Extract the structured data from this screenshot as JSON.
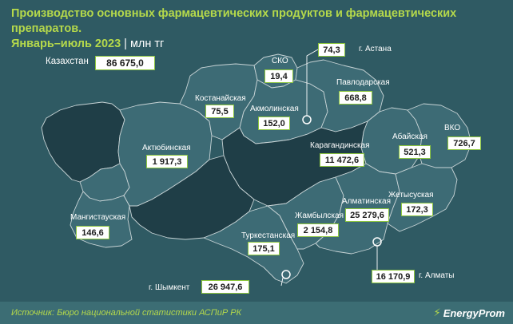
{
  "header": {
    "title_line1": "Производство основных фармацевтических продуктов и фармацевтических препаратов.",
    "title_line2": "Январь–июль 2023",
    "unit": "млн тг"
  },
  "total": {
    "label": "Казахстан",
    "value": "86 675,0"
  },
  "regions": {
    "sko": {
      "label": "СКО",
      "value": "19,4"
    },
    "astana": {
      "label": "г. Астана",
      "value": "74,3"
    },
    "pavlodar": {
      "label": "Павлодарская",
      "value": "668,8"
    },
    "kostanay": {
      "label": "Костанайская",
      "value": "75,5"
    },
    "akmola": {
      "label": "Акмолинская",
      "value": "152,0"
    },
    "aktobe": {
      "label": "Актюбинская",
      "value": "1 917,3"
    },
    "karaganda": {
      "label": "Карагандинская",
      "value": "11 472,6"
    },
    "abay": {
      "label": "Абайская",
      "value": "521,3"
    },
    "vko": {
      "label": "ВКО",
      "value": "726,7"
    },
    "almaty_reg": {
      "label": "Алматинская",
      "value": "25 279,6"
    },
    "zhetysu": {
      "label": "Жетысуская",
      "value": "172,3"
    },
    "mangystau": {
      "label": "Мангистауская",
      "value": "146,6"
    },
    "zhambyl": {
      "label": "Жамбылская",
      "value": "2 154,8"
    },
    "turkestan": {
      "label": "Туркестанская",
      "value": "175,1"
    },
    "shymkent": {
      "label": "г. Шымкент",
      "value": "26 947,6"
    },
    "almaty_city": {
      "label": "г. Алматы",
      "value": "16 170,9"
    }
  },
  "footer": {
    "source": "Источник: Бюро национальной статистики АСПиР РК",
    "brand": "EnergyProm"
  },
  "colors": {
    "background": "#2f5a63",
    "region_light": "#3d6b75",
    "region_dark": "#1f3e47",
    "border": "#c8d4d6",
    "accent": "#b5d94b",
    "value_border": "#8dc63f"
  }
}
